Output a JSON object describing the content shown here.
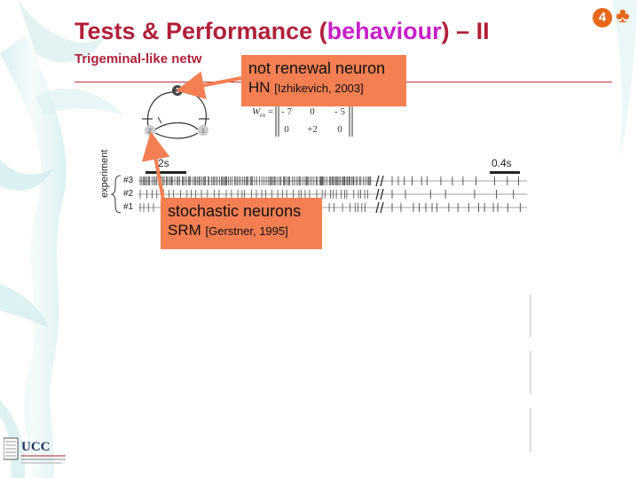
{
  "slide": {
    "badge_number": "4",
    "badge_suit": "♣",
    "title_prefix": "Tests & Performance (",
    "title_highlight": "behaviour",
    "title_suffix": ") – II",
    "subtitle": "Trigeminal-like netw",
    "accent_color": "#b0203a",
    "highlight_color": "#c81fc8",
    "callout_color": "#f37f52"
  },
  "network": {
    "nodes": [
      "3",
      "2",
      "1"
    ]
  },
  "matrix": {
    "label": "W",
    "subscript": "ex",
    "equals": "=",
    "rows": [
      [
        "- 7",
        "0",
        "- 5"
      ],
      [
        "0",
        "+2",
        "0"
      ]
    ]
  },
  "callouts": {
    "hn": {
      "line1": "not renewal neuron",
      "line2": "HN",
      "cite": "[Izhikevich, 2003]"
    },
    "srm": {
      "line1": "stochastic neurons",
      "line2": "SRM",
      "cite": "[Gerstner, 1995]"
    }
  },
  "raster": {
    "scale_left": "2s",
    "scale_right": "0.4s",
    "row_labels": [
      "#3",
      "#2",
      "#1"
    ],
    "side_label": "experiment"
  },
  "logo": {
    "text": "UCC"
  }
}
